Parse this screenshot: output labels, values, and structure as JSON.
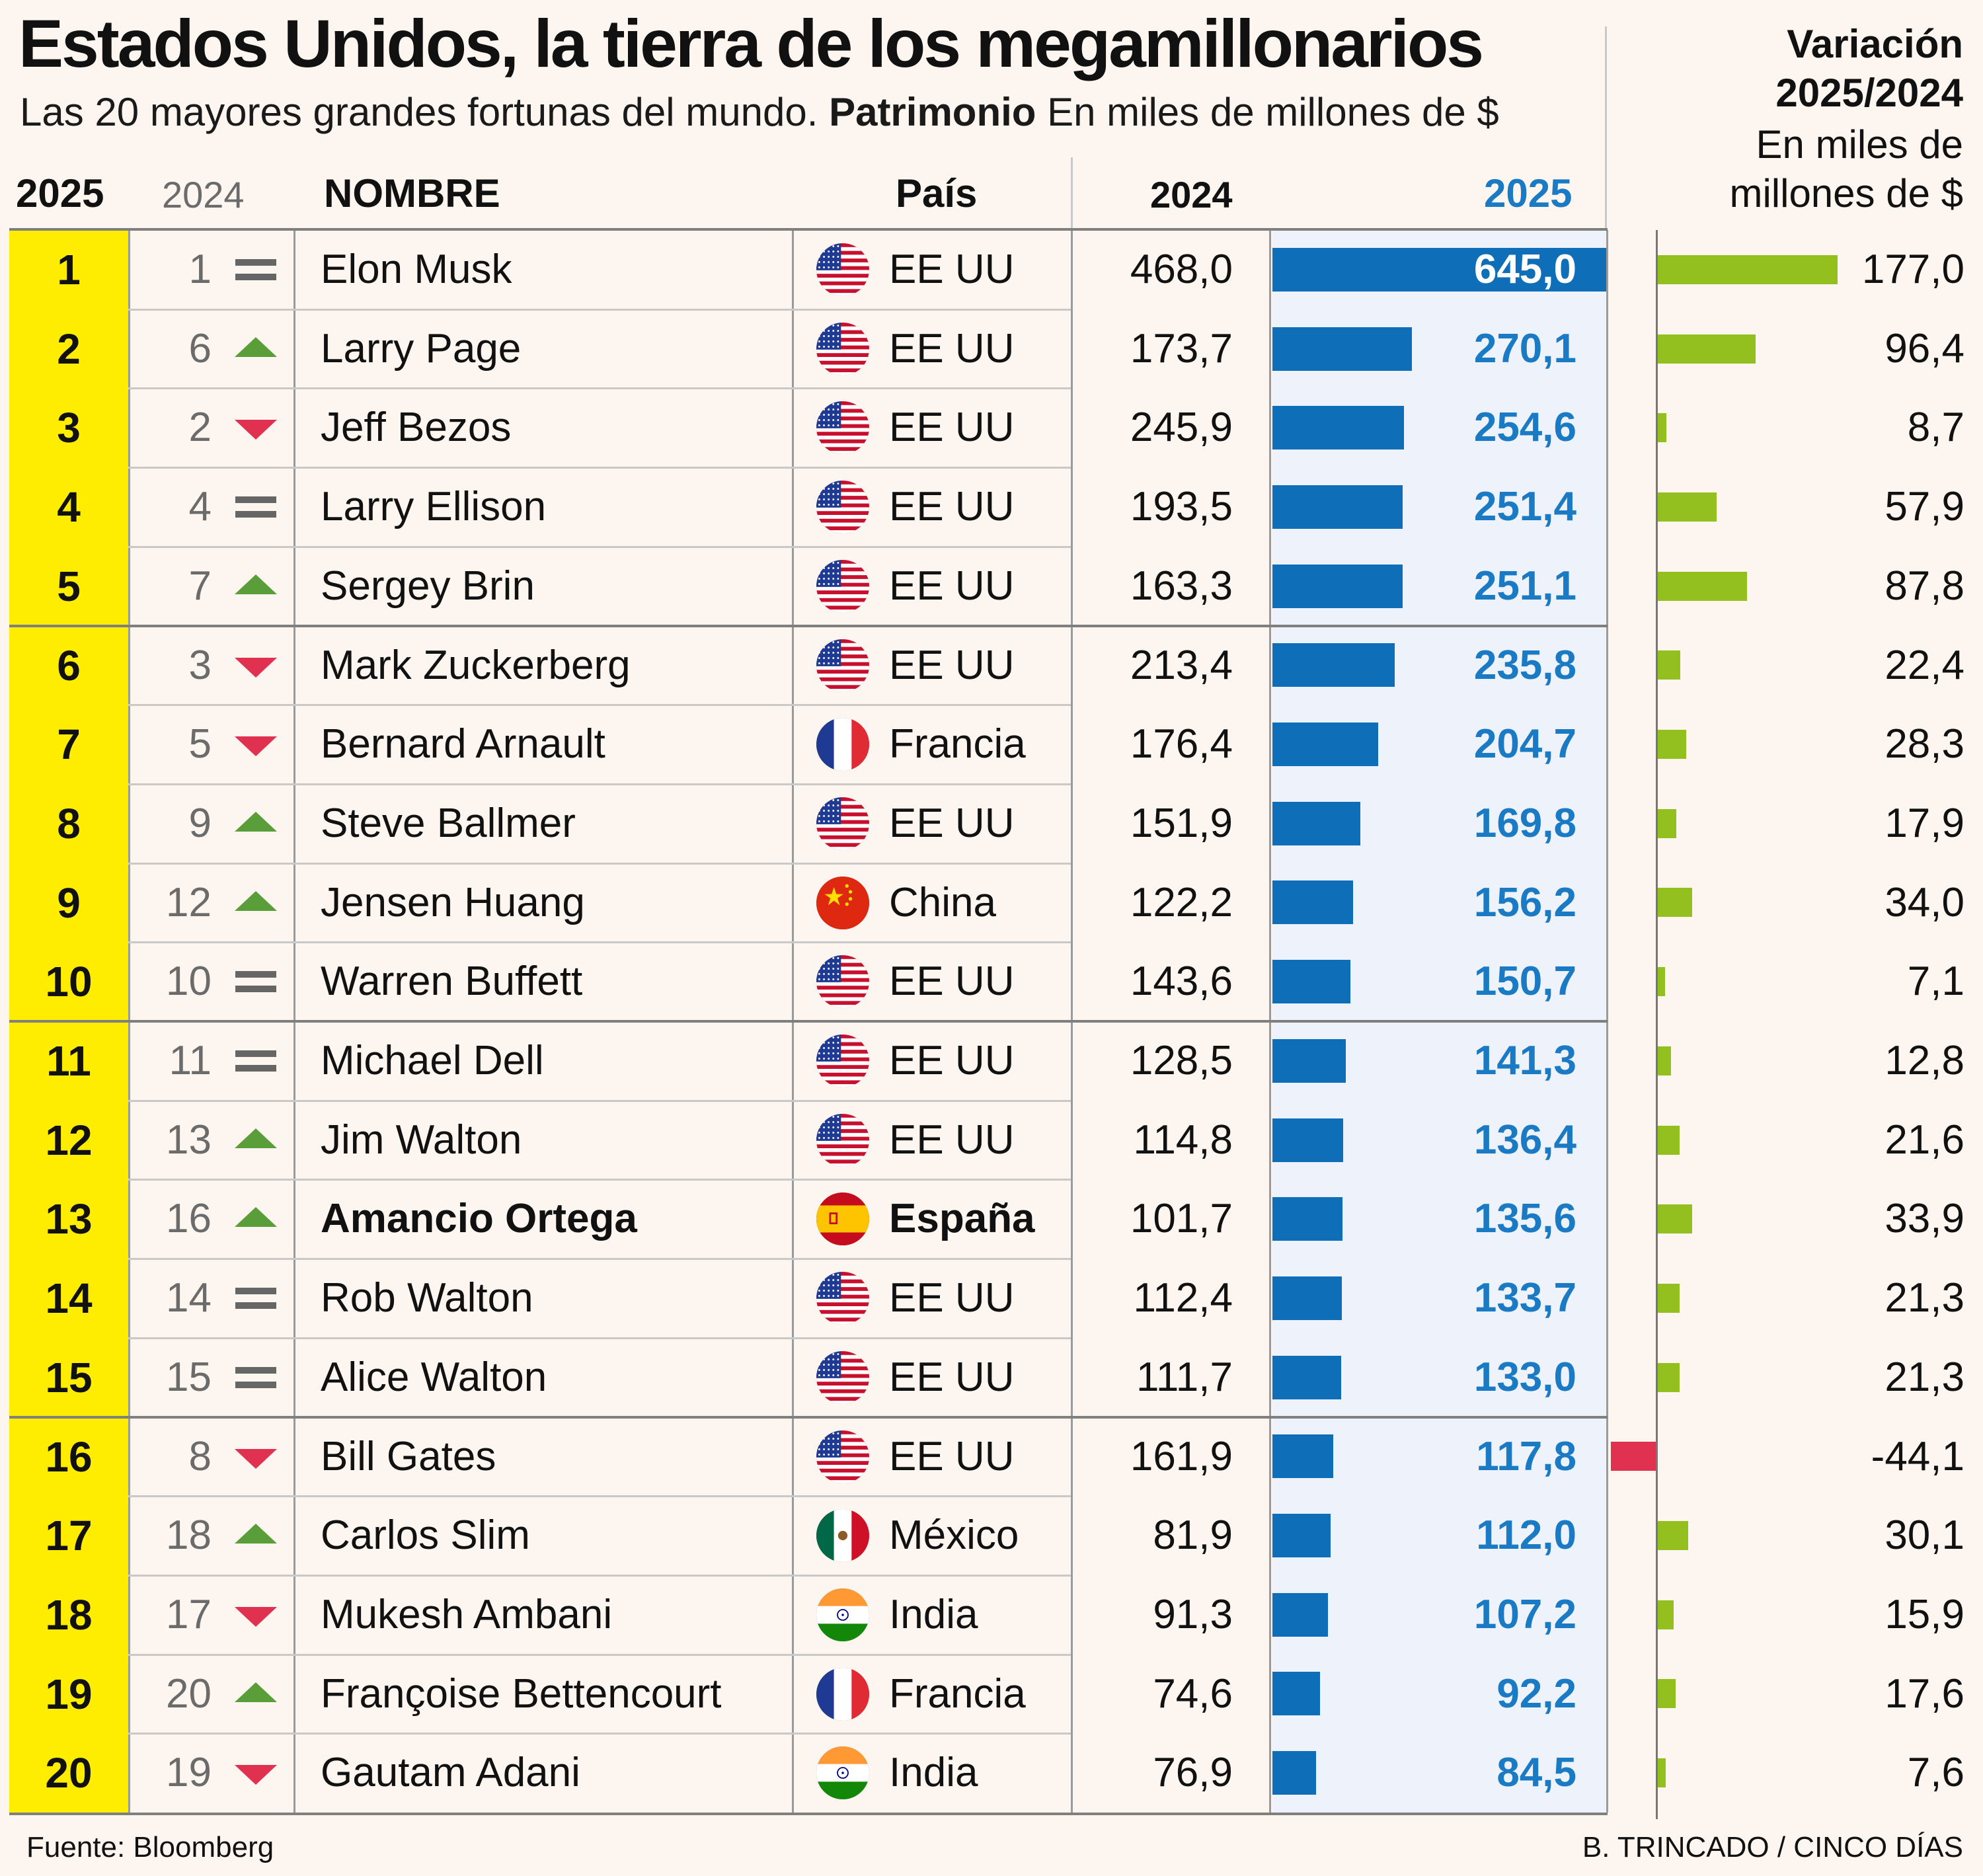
{
  "title": "Estados Unidos, la tierra de los megamillonarios",
  "subtitle_plain": "Las 20 mayores grandes fortunas del mundo.",
  "subtitle_bold": "Patrimonio",
  "subtitle_units": "En miles de millones de $",
  "variation_header": {
    "line1": "Variación",
    "line2": "2025/2024",
    "line3": "En miles de",
    "line4": "millones de $"
  },
  "columns": {
    "rank_2025": "2025",
    "rank_2024": "2024",
    "name": "NOMBRE",
    "country": "País",
    "value_2024": "2024",
    "value_2025": "2025"
  },
  "source": "Fuente: Bloomberg",
  "credit": "B. TRINCADO / CINCO DÍAS",
  "colors": {
    "rank_highlight": "#ffed00",
    "bar_2025": "#0e6fb8",
    "value_2025_text": "#1a7ac4",
    "positive_var": "#93c01f",
    "negative_var": "#e03150",
    "trend_up": "#5a9e3a",
    "trend_down": "#e03150",
    "trend_same": "#666666"
  },
  "chart_data": {
    "type": "table",
    "title": "Estados Unidos, la tierra de los megamillonarios",
    "units": "miles de millones de $",
    "bar_2025_max": 645,
    "variation_scale_max": 177,
    "rows": [
      {
        "rank_2025": "1",
        "rank_2024": "1",
        "trend": "same",
        "name": "Elon Musk",
        "country": "EE UU",
        "flag": "us",
        "v2024": "468,0",
        "v2025": "645,0",
        "v2025_num": 645.0,
        "var": "177,0",
        "var_num": 177.0,
        "bold": false
      },
      {
        "rank_2025": "2",
        "rank_2024": "6",
        "trend": "up",
        "name": "Larry Page",
        "country": "EE UU",
        "flag": "us",
        "v2024": "173,7",
        "v2025": "270,1",
        "v2025_num": 270.1,
        "var": "96,4",
        "var_num": 96.4,
        "bold": false
      },
      {
        "rank_2025": "3",
        "rank_2024": "2",
        "trend": "down",
        "name": "Jeff Bezos",
        "country": "EE UU",
        "flag": "us",
        "v2024": "245,9",
        "v2025": "254,6",
        "v2025_num": 254.6,
        "var": "8,7",
        "var_num": 8.7,
        "bold": false
      },
      {
        "rank_2025": "4",
        "rank_2024": "4",
        "trend": "same",
        "name": "Larry Ellison",
        "country": "EE UU",
        "flag": "us",
        "v2024": "193,5",
        "v2025": "251,4",
        "v2025_num": 251.4,
        "var": "57,9",
        "var_num": 57.9,
        "bold": false
      },
      {
        "rank_2025": "5",
        "rank_2024": "7",
        "trend": "up",
        "name": "Sergey Brin",
        "country": "EE UU",
        "flag": "us",
        "v2024": "163,3",
        "v2025": "251,1",
        "v2025_num": 251.1,
        "var": "87,8",
        "var_num": 87.8,
        "bold": false
      },
      {
        "rank_2025": "6",
        "rank_2024": "3",
        "trend": "down",
        "name": "Mark Zuckerberg",
        "country": "EE UU",
        "flag": "us",
        "v2024": "213,4",
        "v2025": "235,8",
        "v2025_num": 235.8,
        "var": "22,4",
        "var_num": 22.4,
        "bold": false
      },
      {
        "rank_2025": "7",
        "rank_2024": "5",
        "trend": "down",
        "name": "Bernard Arnault",
        "country": "Francia",
        "flag": "fr",
        "v2024": "176,4",
        "v2025": "204,7",
        "v2025_num": 204.7,
        "var": "28,3",
        "var_num": 28.3,
        "bold": false
      },
      {
        "rank_2025": "8",
        "rank_2024": "9",
        "trend": "up",
        "name": "Steve Ballmer",
        "country": "EE UU",
        "flag": "us",
        "v2024": "151,9",
        "v2025": "169,8",
        "v2025_num": 169.8,
        "var": "17,9",
        "var_num": 17.9,
        "bold": false
      },
      {
        "rank_2025": "9",
        "rank_2024": "12",
        "trend": "up",
        "name": "Jensen Huang",
        "country": "China",
        "flag": "cn",
        "v2024": "122,2",
        "v2025": "156,2",
        "v2025_num": 156.2,
        "var": "34,0",
        "var_num": 34.0,
        "bold": false
      },
      {
        "rank_2025": "10",
        "rank_2024": "10",
        "trend": "same",
        "name": "Warren Buffett",
        "country": "EE UU",
        "flag": "us",
        "v2024": "143,6",
        "v2025": "150,7",
        "v2025_num": 150.7,
        "var": "7,1",
        "var_num": 7.1,
        "bold": false
      },
      {
        "rank_2025": "11",
        "rank_2024": "11",
        "trend": "same",
        "name": "Michael Dell",
        "country": "EE UU",
        "flag": "us",
        "v2024": "128,5",
        "v2025": "141,3",
        "v2025_num": 141.3,
        "var": "12,8",
        "var_num": 12.8,
        "bold": false
      },
      {
        "rank_2025": "12",
        "rank_2024": "13",
        "trend": "up",
        "name": "Jim Walton",
        "country": "EE UU",
        "flag": "us",
        "v2024": "114,8",
        "v2025": "136,4",
        "v2025_num": 136.4,
        "var": "21,6",
        "var_num": 21.6,
        "bold": false
      },
      {
        "rank_2025": "13",
        "rank_2024": "16",
        "trend": "up",
        "name": "Amancio Ortega",
        "country": "España",
        "flag": "es",
        "v2024": "101,7",
        "v2025": "135,6",
        "v2025_num": 135.6,
        "var": "33,9",
        "var_num": 33.9,
        "bold": true
      },
      {
        "rank_2025": "14",
        "rank_2024": "14",
        "trend": "same",
        "name": "Rob Walton",
        "country": "EE UU",
        "flag": "us",
        "v2024": "112,4",
        "v2025": "133,7",
        "v2025_num": 133.7,
        "var": "21,3",
        "var_num": 21.3,
        "bold": false
      },
      {
        "rank_2025": "15",
        "rank_2024": "15",
        "trend": "same",
        "name": "Alice Walton",
        "country": "EE UU",
        "flag": "us",
        "v2024": "111,7",
        "v2025": "133,0",
        "v2025_num": 133.0,
        "var": "21,3",
        "var_num": 21.3,
        "bold": false
      },
      {
        "rank_2025": "16",
        "rank_2024": "8",
        "trend": "down",
        "name": "Bill Gates",
        "country": "EE UU",
        "flag": "us",
        "v2024": "161,9",
        "v2025": "117,8",
        "v2025_num": 117.8,
        "var": "-44,1",
        "var_num": -44.1,
        "bold": false
      },
      {
        "rank_2025": "17",
        "rank_2024": "18",
        "trend": "up",
        "name": "Carlos Slim",
        "country": "México",
        "flag": "mx",
        "v2024": "81,9",
        "v2025": "112,0",
        "v2025_num": 112.0,
        "var": "30,1",
        "var_num": 30.1,
        "bold": false
      },
      {
        "rank_2025": "18",
        "rank_2024": "17",
        "trend": "down",
        "name": "Mukesh Ambani",
        "country": "India",
        "flag": "in",
        "v2024": "91,3",
        "v2025": "107,2",
        "v2025_num": 107.2,
        "var": "15,9",
        "var_num": 15.9,
        "bold": false
      },
      {
        "rank_2025": "19",
        "rank_2024": "20",
        "trend": "up",
        "name": "Françoise Bettencourt",
        "country": "Francia",
        "flag": "fr",
        "v2024": "74,6",
        "v2025": "92,2",
        "v2025_num": 92.2,
        "var": "17,6",
        "var_num": 17.6,
        "bold": false
      },
      {
        "rank_2025": "20",
        "rank_2024": "19",
        "trend": "down",
        "name": "Gautam Adani",
        "country": "India",
        "flag": "in",
        "v2024": "76,9",
        "v2025": "84,5",
        "v2025_num": 84.5,
        "var": "7,6",
        "var_num": 7.6,
        "bold": false
      }
    ]
  }
}
